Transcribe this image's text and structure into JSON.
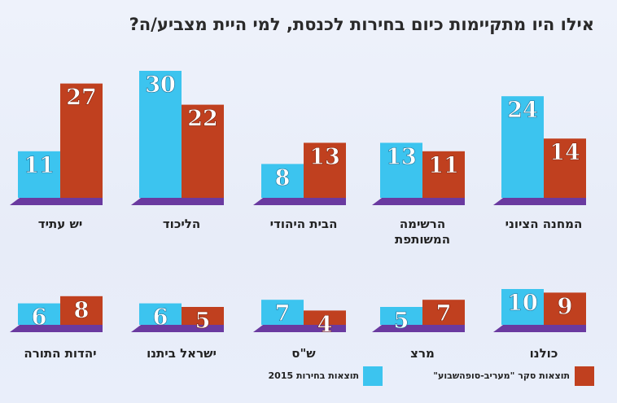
{
  "title": "אילו היו מתקיימות כיום בחירות לכנסת, למי היית מצביע/ה?",
  "legend": {
    "poll_label": "תוצאות סקר \"מעריב-סופהשבוע\"",
    "election_label": "תוצאות בחירות 2015",
    "poll_color": "#c0401f",
    "election_color": "#3cc4ef"
  },
  "colors": {
    "base": "#6a3aa0",
    "label_text": "#ffffff"
  },
  "chart_data": {
    "type": "bar",
    "title": "אילו היו מתקיימות כיום בחירות לכנסת, למי היית מצביע/ה?",
    "series": [
      {
        "name": "תוצאות בחירות 2015",
        "color": "#3cc4ef"
      },
      {
        "name": "תוצאות סקר \"מעריב-סופהשבוע\"",
        "color": "#c0401f"
      }
    ],
    "rows": [
      {
        "parties": [
          {
            "name": "המחנה הציוני",
            "election": 24,
            "poll": 14
          },
          {
            "name": "הרשימה המשותפת",
            "election": 13,
            "poll": 11
          },
          {
            "name": "הבית היהודי",
            "election": 8,
            "poll": 13
          },
          {
            "name": "הליכוד",
            "election": 30,
            "poll": 22
          },
          {
            "name": "יש עתיד",
            "election": 11,
            "poll": 27
          }
        ]
      },
      {
        "parties": [
          {
            "name": "כולנו",
            "election": 10,
            "poll": 9
          },
          {
            "name": "מרצ",
            "election": 5,
            "poll": 7
          },
          {
            "name": "ש\"ס",
            "election": 7,
            "poll": 4
          },
          {
            "name": "ישראל ביתנו",
            "election": 6,
            "poll": 5
          },
          {
            "name": "יהדות התורה",
            "election": 6,
            "poll": 8
          }
        ]
      }
    ]
  }
}
